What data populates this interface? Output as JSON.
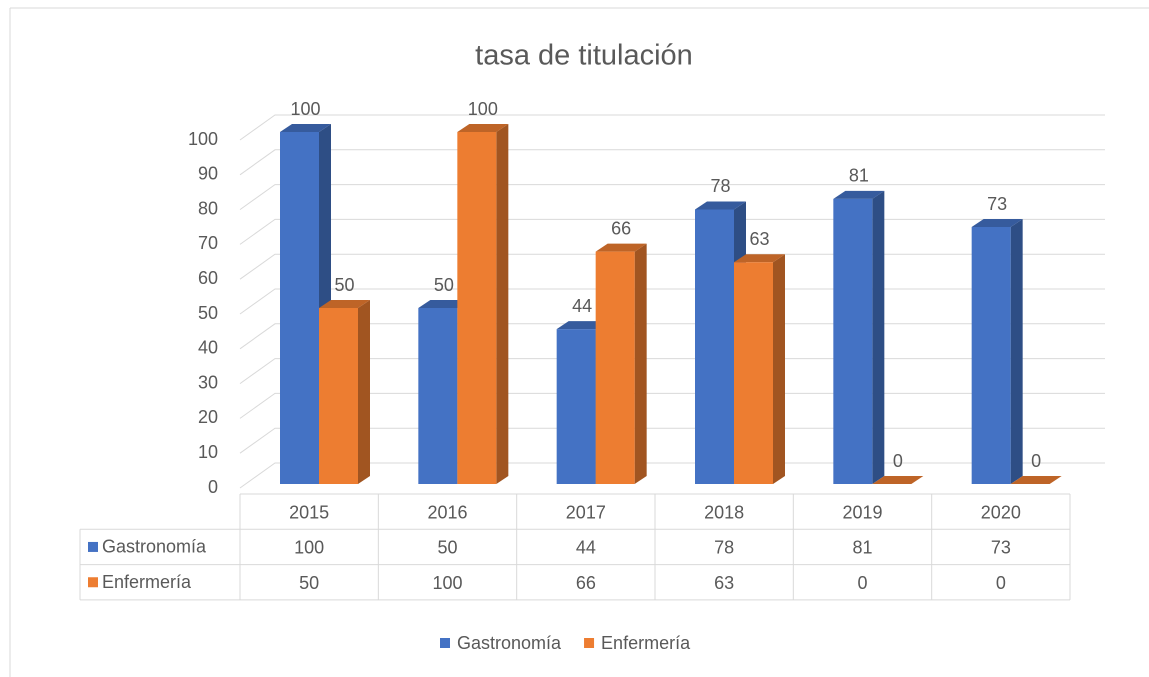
{
  "chart_data": {
    "type": "bar3d",
    "title": "tasa de titulación",
    "categories": [
      "2015",
      "2016",
      "2017",
      "2018",
      "2019",
      "2020"
    ],
    "series": [
      {
        "name": "Gastronomía",
        "color": "#4472c4",
        "values": [
          100,
          50,
          44,
          78,
          81,
          73
        ]
      },
      {
        "name": "Enfermería",
        "color": "#ed7d31",
        "values": [
          50,
          100,
          66,
          63,
          0,
          0
        ]
      }
    ],
    "ylim": [
      0,
      100
    ],
    "yticks": [
      0,
      10,
      20,
      30,
      40,
      50,
      60,
      70,
      80,
      90,
      100
    ],
    "grid": true,
    "data_table": true,
    "legend": "bottom"
  }
}
